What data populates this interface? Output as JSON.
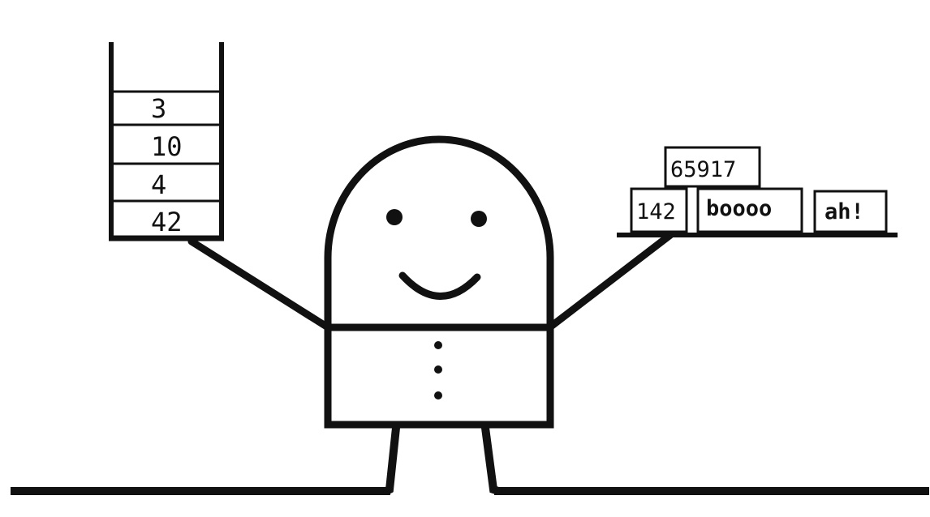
{
  "stack": {
    "cells": [
      "3",
      "10",
      "4",
      "42"
    ]
  },
  "heap": {
    "top_box": "65917",
    "bottom_boxes": [
      "142",
      "boooo",
      "ah!"
    ]
  },
  "colors": {
    "ink": "#111111",
    "background": "#ffffff"
  }
}
